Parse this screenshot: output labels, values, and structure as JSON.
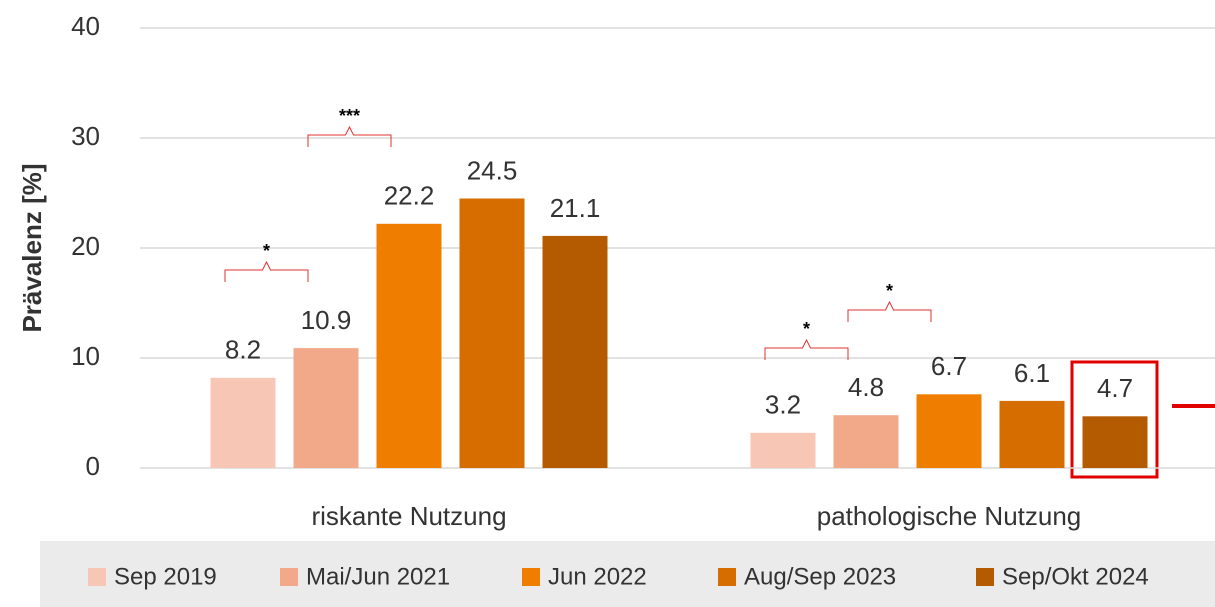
{
  "chart_data": {
    "type": "bar",
    "ylabel": "Prävalenz [%]",
    "categories": [
      "riskante Nutzung",
      "pathologische Nutzung"
    ],
    "series": [
      {
        "name": "Sep 2019",
        "color": "#f8c6b5",
        "values": [
          8.2,
          3.2
        ]
      },
      {
        "name": "Mai/Jun 2021",
        "color": "#f2a98a",
        "values": [
          10.9,
          4.8
        ]
      },
      {
        "name": "Jun 2022",
        "color": "#ef7d00",
        "values": [
          22.2,
          6.7
        ]
      },
      {
        "name": "Aug/Sep 2023",
        "color": "#d66d00",
        "values": [
          24.5,
          6.1
        ]
      },
      {
        "name": "Sep/Okt 2024",
        "color": "#b45a00",
        "values": [
          21.1,
          4.7
        ]
      }
    ],
    "annotations": [
      "*",
      "***",
      "*",
      "*"
    ],
    "ylim": [
      0,
      40
    ],
    "yticks": [
      0,
      10,
      20,
      30,
      40
    ],
    "grid": true,
    "legend": "bottom"
  }
}
